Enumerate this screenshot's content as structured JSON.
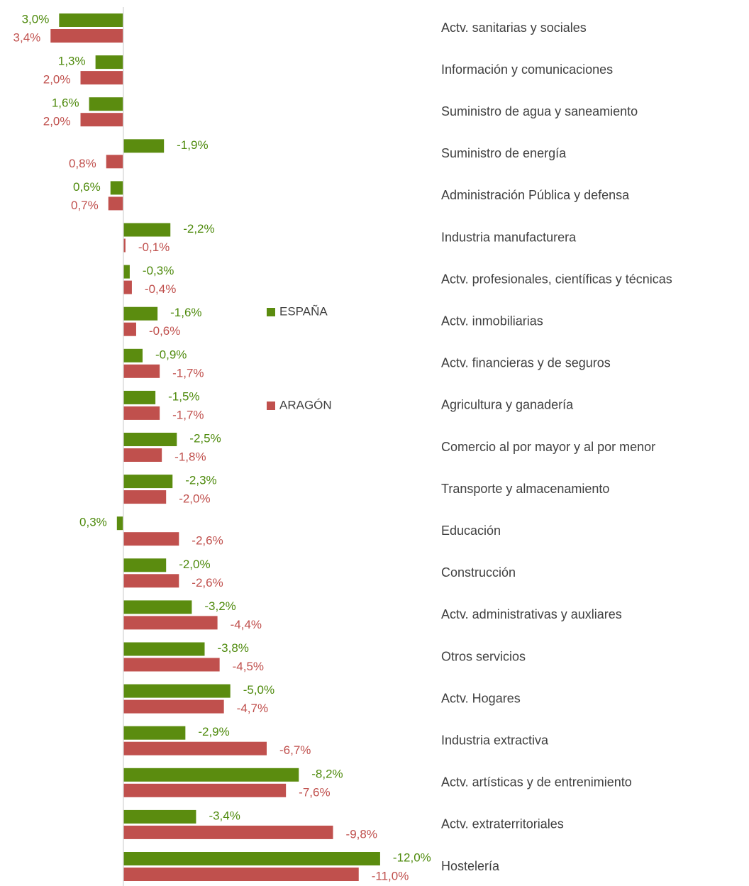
{
  "chart_data": {
    "type": "bar",
    "orientation": "horizontal",
    "categories": [
      "Actv. sanitarias y  sociales",
      "Información y comunicaciones",
      "Suministro de agua y saneamiento",
      "Suministro de energía",
      "Administración Pública y defensa",
      " Industria manufacturera",
      "Actv. profesionales, científicas y técnicas",
      "Actv. inmobiliarias",
      "Actv. financieras y de seguros",
      "Agricultura y ganadería",
      "Comercio al por mayor y al por menor",
      "Transporte y almacenamiento",
      "Educación",
      "Construcción",
      "Actv. administrativas y auxliares",
      "Otros servicios",
      " Actv. Hogares",
      "Industria extractiva",
      "Actv. artísticas y de entrenimiento",
      "Actv. extraterritoriales",
      "Hostelería"
    ],
    "series": [
      {
        "name": "ESPAÑA",
        "color": "#5b8c0f",
        "label_color": "#4e8a0c",
        "values": [
          3.0,
          1.3,
          1.6,
          -1.9,
          0.6,
          -2.2,
          -0.3,
          -1.6,
          -0.9,
          -1.5,
          -2.5,
          -2.3,
          0.3,
          -2.0,
          -3.2,
          -3.8,
          -5.0,
          -2.9,
          -8.2,
          -3.4,
          -12.0
        ],
        "value_labels": [
          "3,0%",
          "1,3%",
          "1,6%",
          "-1,9%",
          "0,6%",
          "-2,2%",
          "-0,3%",
          "-1,6%",
          "-0,9%",
          "-1,5%",
          "-2,5%",
          "-2,3%",
          "0,3%",
          "-2,0%",
          "-3,2%",
          "-3,8%",
          "-5,0%",
          "-2,9%",
          "-8,2%",
          "-3,4%",
          "-12,0%"
        ]
      },
      {
        "name": "ARAGÓN",
        "color": "#c0504d",
        "label_color": "#c0504d",
        "values": [
          3.4,
          2.0,
          2.0,
          0.8,
          0.7,
          -0.1,
          -0.4,
          -0.6,
          -1.7,
          -1.7,
          -1.8,
          -2.0,
          -2.6,
          -2.6,
          -4.4,
          -4.5,
          -4.7,
          -6.7,
          -7.6,
          -9.8,
          -11.0
        ],
        "value_labels": [
          "3,4%",
          "2,0%",
          "2,0%",
          "0,8%",
          "0,7%",
          "-0,1%",
          "-0,4%",
          "-0,6%",
          "-1,7%",
          "-1,7%",
          "-1,8%",
          "-2,0%",
          "-2,6%",
          "-2,6%",
          "-4,4%",
          "-4,5%",
          "-4,7%",
          "-6,7%",
          "-7,6%",
          "-9,8%",
          "-11,0%"
        ]
      }
    ],
    "xlim": [
      5,
      -12.5
    ],
    "legend": "center"
  }
}
